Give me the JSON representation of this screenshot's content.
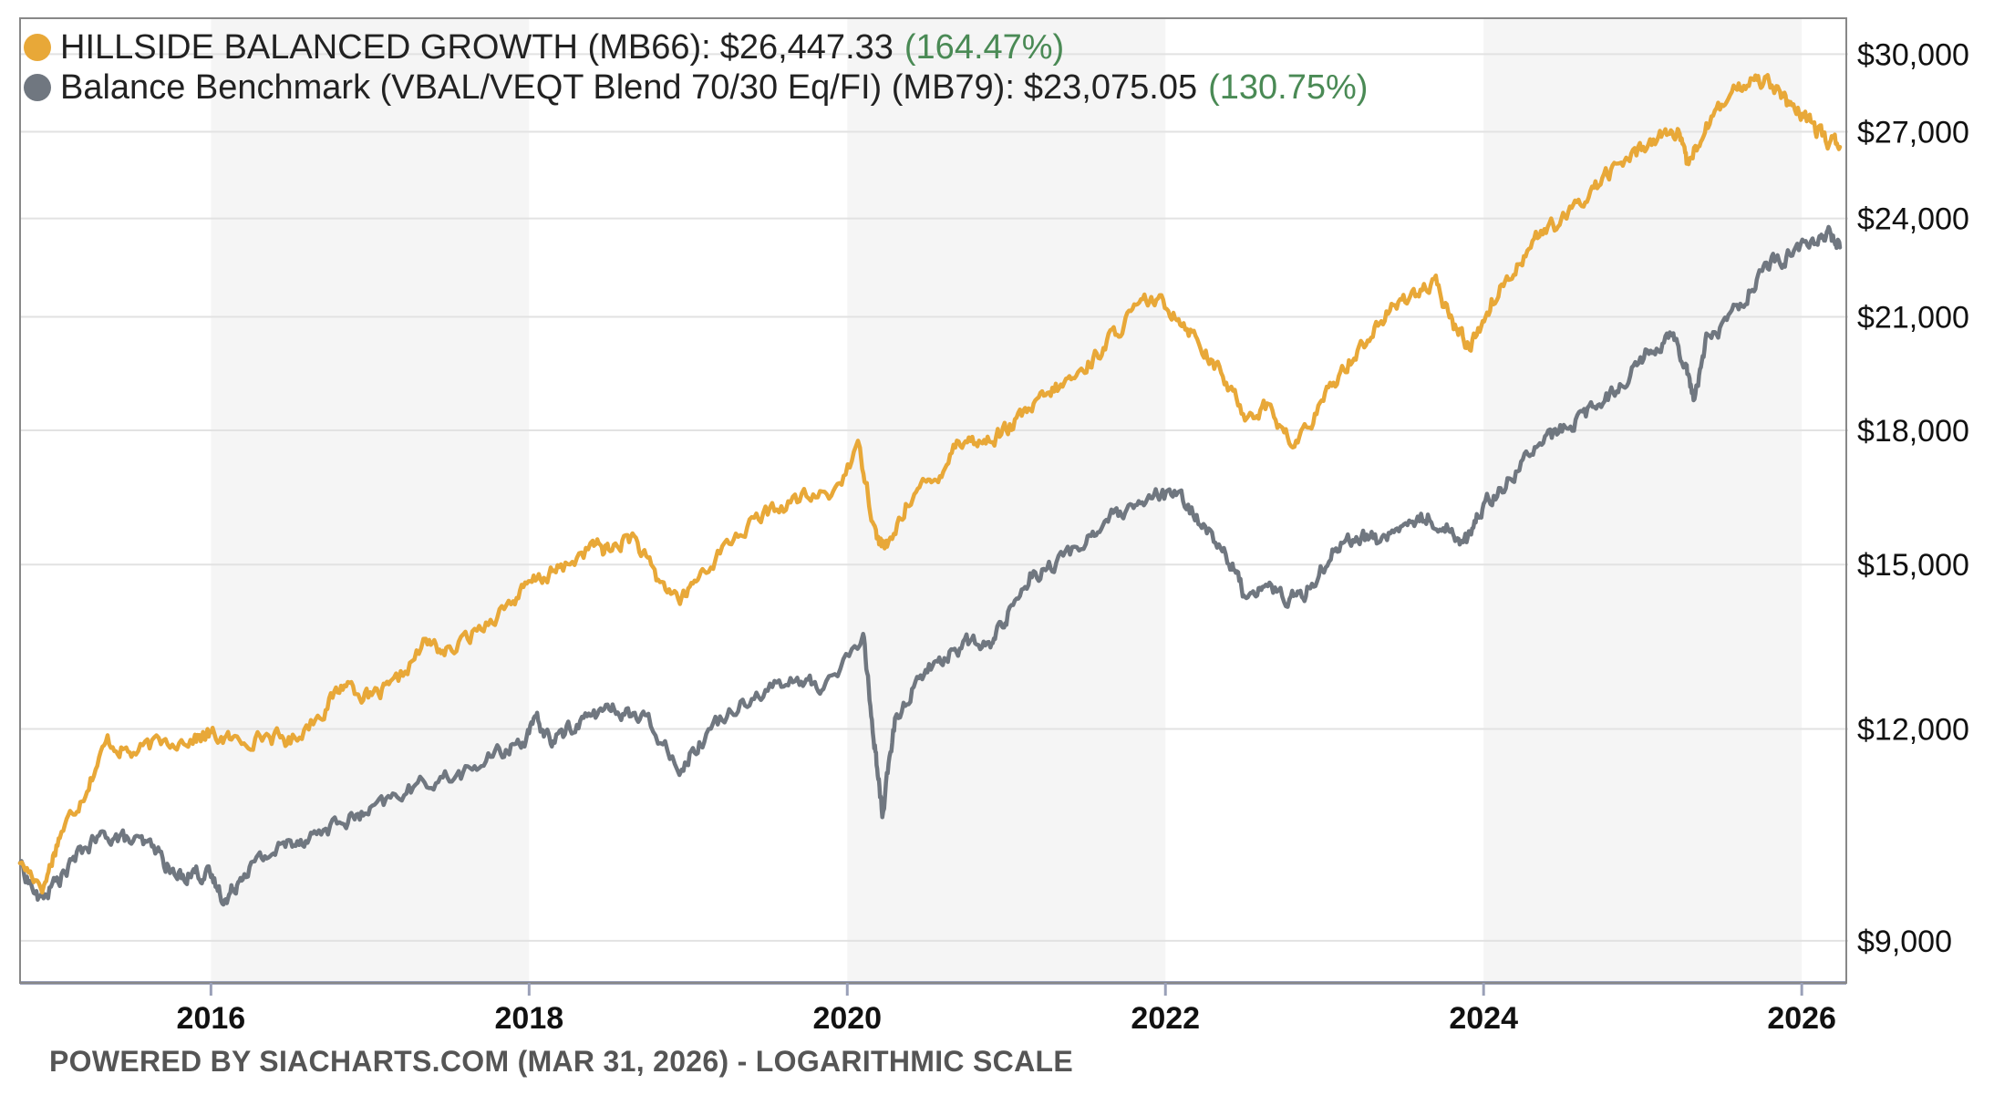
{
  "chart_data": {
    "type": "line",
    "title": "",
    "xlabel": "",
    "ylabel": "",
    "scale": "logarithmic",
    "ylim": [
      8500,
      31500
    ],
    "xlim": [
      2014.8,
      2026.28
    ],
    "y_ticks": [
      {
        "value": 9000,
        "label": "$9,000"
      },
      {
        "value": 12000,
        "label": "$12,000"
      },
      {
        "value": 15000,
        "label": "$15,000"
      },
      {
        "value": 18000,
        "label": "$18,000"
      },
      {
        "value": 21000,
        "label": "$21,000"
      },
      {
        "value": 24000,
        "label": "$24,000"
      },
      {
        "value": 27000,
        "label": "$27,000"
      },
      {
        "value": 30000,
        "label": "$30,000"
      }
    ],
    "x_ticks": [
      {
        "value": 2016,
        "label": "2016"
      },
      {
        "value": 2018,
        "label": "2018"
      },
      {
        "value": 2020,
        "label": "2020"
      },
      {
        "value": 2022,
        "label": "2022"
      },
      {
        "value": 2024,
        "label": "2024"
      },
      {
        "value": 2026,
        "label": "2026"
      }
    ],
    "shaded_years": [
      [
        2016,
        2018
      ],
      [
        2020,
        2022
      ],
      [
        2024,
        2026
      ]
    ],
    "grid": true,
    "legend_position": "top-left",
    "series": [
      {
        "name": "HILLSIDE BALANCED GROWTH (MB66)",
        "value_label": "$26,447.33",
        "pct_label": "(164.47%)",
        "color": "#E8A838",
        "points": [
          [
            2014.8,
            10000
          ],
          [
            2014.95,
            9700
          ],
          [
            2015.05,
            10400
          ],
          [
            2015.2,
            11000
          ],
          [
            2015.35,
            11800
          ],
          [
            2015.5,
            11600
          ],
          [
            2015.7,
            11800
          ],
          [
            2015.9,
            11850
          ],
          [
            2016.0,
            11900
          ],
          [
            2016.15,
            11800
          ],
          [
            2016.35,
            11900
          ],
          [
            2016.5,
            11800
          ],
          [
            2016.7,
            12300
          ],
          [
            2016.85,
            12800
          ],
          [
            2017.0,
            12500
          ],
          [
            2017.15,
            12700
          ],
          [
            2017.35,
            13500
          ],
          [
            2017.5,
            13300
          ],
          [
            2017.7,
            13800
          ],
          [
            2017.9,
            14300
          ],
          [
            2018.05,
            14700
          ],
          [
            2018.2,
            14900
          ],
          [
            2018.4,
            15400
          ],
          [
            2018.5,
            15300
          ],
          [
            2018.65,
            15600
          ],
          [
            2018.8,
            14700
          ],
          [
            2018.96,
            14300
          ],
          [
            2019.1,
            14900
          ],
          [
            2019.3,
            15600
          ],
          [
            2019.5,
            16100
          ],
          [
            2019.7,
            16400
          ],
          [
            2019.9,
            16500
          ],
          [
            2020.08,
            17600
          ],
          [
            2020.18,
            15600
          ],
          [
            2020.25,
            15300
          ],
          [
            2020.4,
            16500
          ],
          [
            2020.55,
            16800
          ],
          [
            2020.7,
            17800
          ],
          [
            2020.85,
            17700
          ],
          [
            2021.0,
            18000
          ],
          [
            2021.15,
            18500
          ],
          [
            2021.3,
            19000
          ],
          [
            2021.45,
            19400
          ],
          [
            2021.6,
            20100
          ],
          [
            2021.75,
            20900
          ],
          [
            2021.9,
            21500
          ],
          [
            2022.05,
            21200
          ],
          [
            2022.2,
            20400
          ],
          [
            2022.35,
            19400
          ],
          [
            2022.5,
            18400
          ],
          [
            2022.65,
            18600
          ],
          [
            2022.8,
            17600
          ],
          [
            2022.95,
            18400
          ],
          [
            2023.1,
            19500
          ],
          [
            2023.25,
            20300
          ],
          [
            2023.4,
            21100
          ],
          [
            2023.55,
            21700
          ],
          [
            2023.7,
            21900
          ],
          [
            2023.82,
            20700
          ],
          [
            2023.92,
            20200
          ],
          [
            2024.05,
            21400
          ],
          [
            2024.2,
            22500
          ],
          [
            2024.35,
            23500
          ],
          [
            2024.5,
            23900
          ],
          [
            2024.65,
            24800
          ],
          [
            2024.8,
            25600
          ],
          [
            2024.95,
            26200
          ],
          [
            2025.1,
            26900
          ],
          [
            2025.22,
            26900
          ],
          [
            2025.28,
            25800
          ],
          [
            2025.4,
            27200
          ],
          [
            2025.55,
            28300
          ],
          [
            2025.7,
            29100
          ],
          [
            2025.82,
            28900
          ],
          [
            2025.92,
            27900
          ],
          [
            2026.05,
            27400
          ],
          [
            2026.15,
            26700
          ],
          [
            2026.24,
            26447
          ]
        ]
      },
      {
        "name": "Balance Benchmark (VBAL/VEQT Blend 70/30 Eq/FI) (MB79)",
        "value_label": "$23,075.05",
        "pct_label": "(130.75%)",
        "color": "#707780",
        "points": [
          [
            2014.8,
            10000
          ],
          [
            2014.92,
            9500
          ],
          [
            2015.05,
            9800
          ],
          [
            2015.2,
            10200
          ],
          [
            2015.35,
            10400
          ],
          [
            2015.5,
            10300
          ],
          [
            2015.65,
            10200
          ],
          [
            2015.78,
            9800
          ],
          [
            2015.9,
            9900
          ],
          [
            2016.0,
            9800
          ],
          [
            2016.1,
            9500
          ],
          [
            2016.2,
            9900
          ],
          [
            2016.35,
            10100
          ],
          [
            2016.5,
            10300
          ],
          [
            2016.65,
            10400
          ],
          [
            2016.85,
            10600
          ],
          [
            2017.0,
            10700
          ],
          [
            2017.2,
            11000
          ],
          [
            2017.4,
            11200
          ],
          [
            2017.6,
            11300
          ],
          [
            2017.8,
            11600
          ],
          [
            2017.95,
            11800
          ],
          [
            2018.05,
            12100
          ],
          [
            2018.15,
            11800
          ],
          [
            2018.3,
            12100
          ],
          [
            2018.45,
            12300
          ],
          [
            2018.6,
            12300
          ],
          [
            2018.75,
            12100
          ],
          [
            2018.96,
            11400
          ],
          [
            2019.1,
            11900
          ],
          [
            2019.3,
            12400
          ],
          [
            2019.5,
            12700
          ],
          [
            2019.7,
            12800
          ],
          [
            2019.85,
            12700
          ],
          [
            2020.1,
            13600
          ],
          [
            2020.17,
            11800
          ],
          [
            2020.22,
            10700
          ],
          [
            2020.3,
            12100
          ],
          [
            2020.45,
            12900
          ],
          [
            2020.6,
            13200
          ],
          [
            2020.75,
            13500
          ],
          [
            2020.9,
            13400
          ],
          [
            2021.0,
            14000
          ],
          [
            2021.15,
            14800
          ],
          [
            2021.3,
            15000
          ],
          [
            2021.5,
            15500
          ],
          [
            2021.65,
            16000
          ],
          [
            2021.8,
            16100
          ],
          [
            2021.95,
            16500
          ],
          [
            2022.1,
            16400
          ],
          [
            2022.25,
            15800
          ],
          [
            2022.4,
            15100
          ],
          [
            2022.5,
            14400
          ],
          [
            2022.62,
            14600
          ],
          [
            2022.78,
            14300
          ],
          [
            2022.9,
            14500
          ],
          [
            2023.05,
            15300
          ],
          [
            2023.2,
            15600
          ],
          [
            2023.35,
            15500
          ],
          [
            2023.5,
            15800
          ],
          [
            2023.65,
            16000
          ],
          [
            2023.8,
            15700
          ],
          [
            2023.9,
            15500
          ],
          [
            2024.0,
            16300
          ],
          [
            2024.15,
            16800
          ],
          [
            2024.3,
            17500
          ],
          [
            2024.45,
            17900
          ],
          [
            2024.6,
            18300
          ],
          [
            2024.75,
            18700
          ],
          [
            2024.9,
            19400
          ],
          [
            2025.05,
            20100
          ],
          [
            2025.18,
            20500
          ],
          [
            2025.27,
            19800
          ],
          [
            2025.32,
            18800
          ],
          [
            2025.4,
            20300
          ],
          [
            2025.55,
            21000
          ],
          [
            2025.7,
            22000
          ],
          [
            2025.82,
            22600
          ],
          [
            2025.95,
            22900
          ],
          [
            2026.1,
            23300
          ],
          [
            2026.18,
            23500
          ],
          [
            2026.24,
            23075
          ]
        ]
      }
    ],
    "footer": "POWERED BY SIACHARTS.COM (MAR 31, 2026) - LOGARITHMIC SCALE",
    "pct_color": "#4A8A55",
    "grid_color": "#E2E2E2",
    "shade_color": "#F5F5F5",
    "border_color": "#888888"
  }
}
